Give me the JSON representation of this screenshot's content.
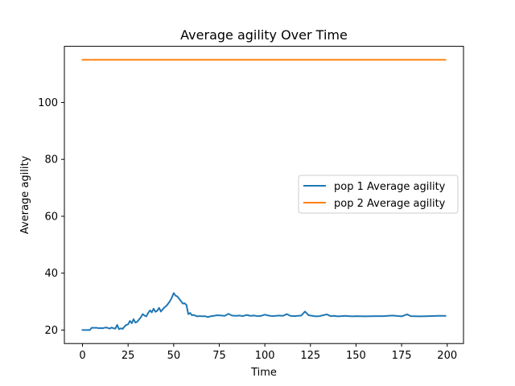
{
  "chart_data": {
    "type": "line",
    "title": "Average agility Over Time",
    "xlabel": "Time",
    "ylabel": "Average agility",
    "xlim": [
      -9.95,
      208.95
    ],
    "ylim": [
      15.25,
      119.75
    ],
    "xticks": [
      0,
      25,
      50,
      75,
      100,
      125,
      150,
      175,
      200
    ],
    "yticks": [
      20,
      40,
      60,
      80,
      100
    ],
    "grid": false,
    "legend_position": "center-right",
    "series": [
      {
        "name": "pop 1 Average agility",
        "color": "#1f77b4",
        "x": [
          0,
          1,
          2,
          3,
          4,
          5,
          6,
          7,
          8,
          9,
          10,
          11,
          12,
          13,
          14,
          15,
          16,
          17,
          18,
          19,
          20,
          21,
          22,
          23,
          24,
          25,
          26,
          27,
          28,
          29,
          30,
          31,
          32,
          33,
          34,
          35,
          36,
          37,
          38,
          39,
          40,
          41,
          42,
          43,
          44,
          45,
          46,
          47,
          48,
          49,
          50,
          51,
          52,
          53,
          54,
          55,
          56,
          57,
          58,
          59,
          60,
          61,
          62,
          63,
          64,
          65,
          66,
          67,
          68,
          69,
          70,
          72,
          74,
          76,
          78,
          80,
          82,
          84,
          86,
          88,
          90,
          92,
          94,
          96,
          98,
          100,
          102,
          104,
          106,
          108,
          110,
          112,
          114,
          116,
          118,
          120,
          122,
          124,
          126,
          128,
          130,
          132,
          134,
          136,
          138,
          140,
          142,
          144,
          146,
          148,
          150,
          155,
          160,
          165,
          170,
          175,
          178,
          180,
          185,
          190,
          195,
          199
        ],
        "y": [
          20,
          20,
          20,
          20,
          20,
          20.8,
          20.8,
          20.8,
          20.8,
          20.6,
          20.7,
          20.6,
          20.8,
          20.9,
          20.7,
          20.5,
          20.9,
          20.6,
          20.5,
          21.8,
          20.3,
          20.6,
          20.4,
          21.2,
          21.8,
          22.0,
          23.2,
          22.4,
          23.8,
          22.6,
          22.9,
          23.7,
          24.5,
          25.6,
          25.1,
          24.8,
          26.0,
          26.9,
          26.2,
          27.5,
          26.4,
          26.8,
          27.8,
          26.5,
          27.3,
          28.0,
          28.5,
          29.3,
          30.2,
          31.4,
          33.0,
          32.1,
          31.8,
          31.0,
          30.2,
          29.3,
          29.4,
          28.8,
          25.6,
          26.0,
          25.2,
          25.3,
          25.0,
          24.8,
          24.9,
          24.9,
          24.8,
          24.9,
          24.7,
          24.6,
          24.8,
          25.0,
          25.2,
          25.1,
          25.0,
          25.7,
          25.1,
          25.0,
          25.1,
          24.9,
          25.3,
          25.0,
          25.1,
          24.9,
          25.0,
          25.4,
          25.1,
          24.9,
          25.0,
          25.1,
          25.0,
          25.6,
          25.0,
          24.9,
          25.0,
          25.1,
          26.5,
          25.2,
          25.0,
          24.8,
          24.9,
          25.2,
          25.5,
          24.9,
          25.0,
          24.8,
          24.9,
          25.0,
          24.9,
          24.8,
          24.9,
          24.8,
          24.9,
          24.9,
          25.1,
          24.8,
          25.5,
          24.9,
          24.8,
          24.9,
          25.0,
          25.0
        ]
      },
      {
        "name": "pop 2 Average agility",
        "color": "#ff7f0e",
        "x": [
          0,
          199
        ],
        "y": [
          115,
          115
        ]
      }
    ]
  }
}
